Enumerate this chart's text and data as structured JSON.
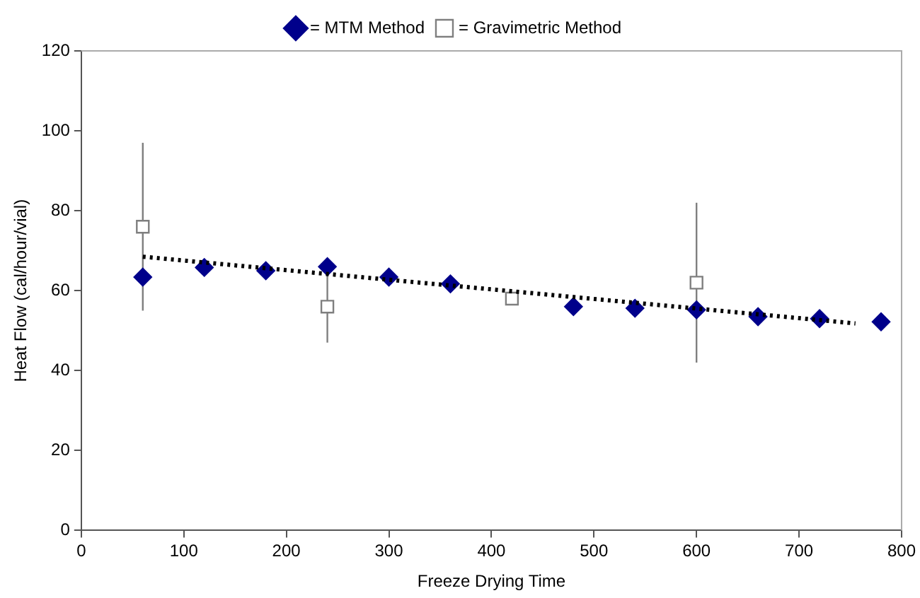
{
  "chart_data": {
    "type": "scatter",
    "xlabel": "Freeze Drying Time",
    "ylabel": "Heat Flow (cal/hour/vial)",
    "xlim": [
      0,
      800
    ],
    "ylim": [
      0,
      120
    ],
    "xticks": [
      0,
      100,
      200,
      300,
      400,
      500,
      600,
      700,
      800
    ],
    "yticks": [
      0,
      20,
      40,
      60,
      80,
      100,
      120
    ],
    "grid": false,
    "legend": "top",
    "series": [
      {
        "name": "= MTM Method",
        "color": "#00008b",
        "marker": "diamond",
        "x": [
          60,
          120,
          180,
          240,
          300,
          360,
          480,
          540,
          600,
          660,
          720,
          780
        ],
        "values": [
          63.4,
          65.8,
          65,
          66,
          63.4,
          61.7,
          56,
          55.6,
          55.2,
          53.5,
          53,
          52.2
        ]
      },
      {
        "name": "= Gravimetric Method",
        "color": "#7f7f7f",
        "marker": "square",
        "x": [
          60,
          240,
          420,
          600
        ],
        "values": [
          76,
          56,
          58,
          62
        ],
        "errors": [
          21,
          9,
          null,
          20
        ]
      },
      {
        "type": "line",
        "color": "#000000",
        "marker": "none",
        "line_style": "dotted",
        "x": [
          60,
          755
        ],
        "values": [
          68.5,
          51.8
        ]
      }
    ]
  }
}
